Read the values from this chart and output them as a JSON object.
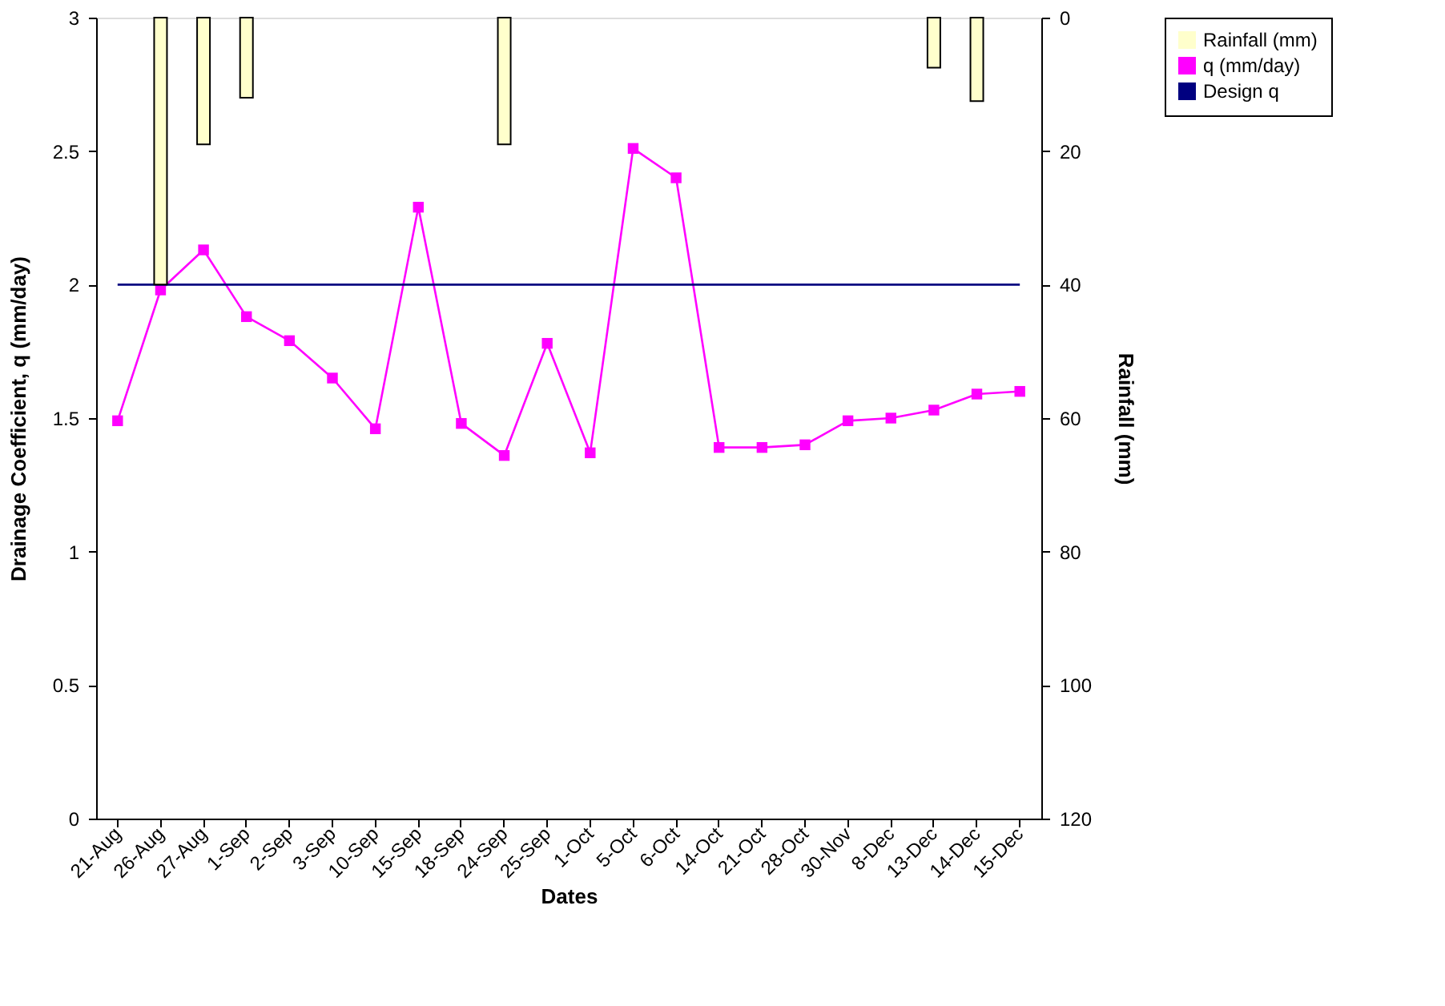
{
  "chart_data": {
    "type": "line",
    "xlabel": "Dates",
    "ylabel": "Drainage Coefficient, q (mm/day)",
    "y2label": "Rainfall (mm)",
    "categories": [
      "21-Aug",
      "26-Aug",
      "27-Aug",
      "1-Sep",
      "2-Sep",
      "3-Sep",
      "10-Sep",
      "15-Sep",
      "18-Sep",
      "24-Sep",
      "25-Sep",
      "1-Oct",
      "5-Oct",
      "6-Oct",
      "14-Oct",
      "21-Oct",
      "28-Oct",
      "30-Nov",
      "8-Dec",
      "13-Dec",
      "14-Dec",
      "15-Dec"
    ],
    "series": [
      {
        "name": "Rainfall (mm)",
        "type": "bar",
        "axis": "y2",
        "color": "#ffffcc",
        "values": [
          null,
          40,
          19,
          12,
          null,
          null,
          null,
          null,
          null,
          19,
          null,
          null,
          null,
          null,
          null,
          null,
          null,
          null,
          null,
          7.5,
          12.5,
          null
        ]
      },
      {
        "name": "q (mm/day)",
        "color": "#ff00ff",
        "marker": "square",
        "values": [
          1.49,
          1.98,
          2.13,
          1.88,
          1.79,
          1.65,
          1.46,
          2.29,
          1.48,
          1.36,
          1.78,
          1.37,
          2.51,
          2.4,
          1.39,
          1.39,
          1.4,
          1.49,
          1.5,
          1.53,
          1.59,
          1.6
        ]
      },
      {
        "name": "Design q",
        "color": "#000080",
        "marker": "none",
        "values": [
          2,
          2,
          2,
          2,
          2,
          2,
          2,
          2,
          2,
          2,
          2,
          2,
          2,
          2,
          2,
          2,
          2,
          2,
          2,
          2,
          2,
          2
        ]
      }
    ],
    "ylim": [
      0,
      3
    ],
    "yticks": [
      0,
      0.5,
      1,
      1.5,
      2,
      2.5,
      3
    ],
    "y2lim": [
      120,
      0
    ],
    "y2ticks": [
      0,
      20,
      40,
      60,
      80,
      100,
      120
    ],
    "grid": false,
    "legend": "right"
  }
}
